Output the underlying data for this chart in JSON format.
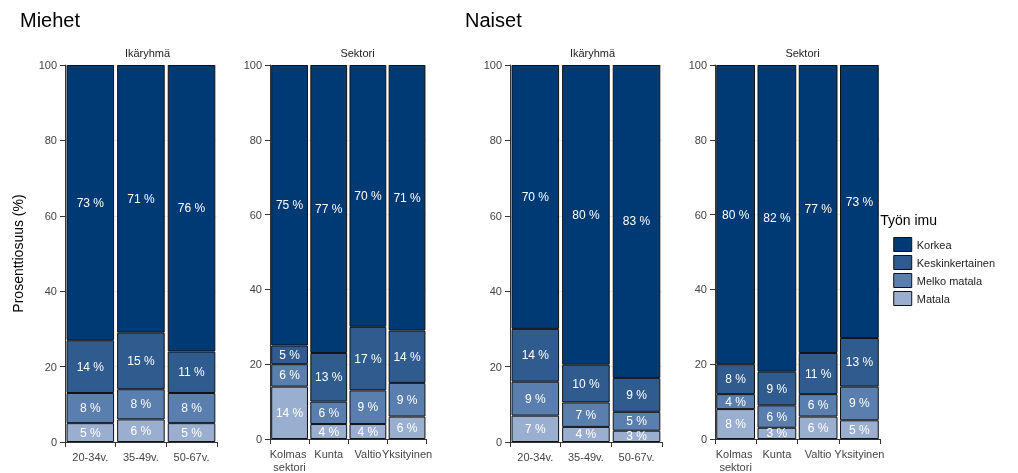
{
  "chart_data": [
    {
      "type": "bar",
      "title": "Miehet",
      "subtitle": "Ikäryhmä",
      "ylabel": "Prosenttiosuus (%)",
      "categories": [
        "20-34v.",
        "35-49v.",
        "50-67v."
      ],
      "stacked": true,
      "ylim": [
        0,
        100
      ],
      "yticks": [
        0,
        20,
        40,
        60,
        80,
        100
      ],
      "grid": "y",
      "legend": false,
      "series": [
        {
          "color": "#9aafcf",
          "values": [
            5,
            6,
            5
          ],
          "value_labels": [
            "5 %",
            "6 %",
            "5 %"
          ]
        },
        {
          "color": "#5a7fae",
          "values": [
            8,
            8,
            8
          ],
          "value_labels": [
            "8 %",
            "8 %",
            "8 %"
          ]
        },
        {
          "color": "#2f5b8e",
          "values": [
            14,
            15,
            11
          ],
          "value_labels": [
            "14 %",
            "15 %",
            "11 %"
          ]
        },
        {
          "color": "#003a75",
          "values": [
            73,
            71,
            76
          ],
          "value_labels": [
            "73 %",
            "71 %",
            "76 %"
          ]
        }
      ]
    },
    {
      "type": "bar",
      "subtitle": "Sektori",
      "categories": [
        "Kolmas sektori",
        "Kunta",
        "Valtio",
        "Yksityinen"
      ],
      "stacked": true,
      "ylim": [
        0,
        100
      ],
      "yticks": [
        0,
        20,
        40,
        60,
        80,
        100
      ],
      "grid": "y",
      "legend": false,
      "series": [
        {
          "color": "#9aafcf",
          "values": [
            14,
            4,
            4,
            6
          ],
          "value_labels": [
            "14 %",
            "4 %",
            "4 %",
            "6 %"
          ]
        },
        {
          "color": "#5a7fae",
          "values": [
            6,
            6,
            9,
            9
          ],
          "value_labels": [
            "6 %",
            "6 %",
            "9 %",
            "9 %"
          ]
        },
        {
          "color": "#2f5b8e",
          "values": [
            5,
            13,
            17,
            14
          ],
          "value_labels": [
            "5 %",
            "13 %",
            "17 %",
            "14 %"
          ]
        },
        {
          "color": "#003a75",
          "values": [
            75,
            77,
            70,
            71
          ],
          "value_labels": [
            "75 %",
            "77 %",
            "70 %",
            "71 %"
          ]
        }
      ]
    },
    {
      "type": "bar",
      "title": "Naiset",
      "subtitle": "Ikäryhmä",
      "categories": [
        "20-34v.",
        "35-49v.",
        "50-67v."
      ],
      "stacked": true,
      "ylim": [
        0,
        100
      ],
      "yticks": [
        0,
        20,
        40,
        60,
        80,
        100
      ],
      "grid": "y",
      "legend": false,
      "series": [
        {
          "color": "#9aafcf",
          "values": [
            7,
            4,
            3
          ],
          "value_labels": [
            "7 %",
            "4 %",
            "3 %"
          ]
        },
        {
          "color": "#5a7fae",
          "values": [
            9,
            6.5,
            5
          ],
          "value_labels": [
            "9 %",
            "7 %",
            "5 %"
          ]
        },
        {
          "color": "#2f5b8e",
          "values": [
            14,
            10,
            9
          ],
          "value_labels": [
            "14 %",
            "10 %",
            "9 %"
          ]
        },
        {
          "color": "#003a75",
          "values": [
            70,
            79.5,
            83
          ],
          "value_labels": [
            "70 %",
            "80 %",
            "83 %"
          ]
        }
      ]
    },
    {
      "type": "bar",
      "subtitle": "Sektori",
      "legend_title": "Työn imu",
      "categories": [
        "Kolmas sektori",
        "Kunta",
        "Valtio",
        "Yksityinen"
      ],
      "stacked": true,
      "ylim": [
        0,
        100
      ],
      "yticks": [
        0,
        20,
        40,
        60,
        80,
        100
      ],
      "grid": "y",
      "legend": "right",
      "series": [
        {
          "name": "Matala",
          "color": "#9aafcf",
          "values": [
            8,
            3,
            6,
            5
          ],
          "value_labels": [
            "8 %",
            "3 %",
            "6 %",
            "5 %"
          ]
        },
        {
          "name": "Melko matala",
          "color": "#5a7fae",
          "values": [
            4,
            6,
            6,
            9
          ],
          "value_labels": [
            "4 %",
            "6 %",
            "6 %",
            "9 %"
          ]
        },
        {
          "name": "Keskinkertainen",
          "color": "#2f5b8e",
          "values": [
            8,
            9,
            11,
            13
          ],
          "value_labels": [
            "8 %",
            "9 %",
            "11 %",
            "13 %"
          ]
        },
        {
          "name": "Korkea",
          "color": "#003a75",
          "values": [
            80,
            82,
            77,
            73
          ],
          "value_labels": [
            "80 %",
            "82 %",
            "77 %",
            "73 %"
          ]
        }
      ]
    }
  ]
}
